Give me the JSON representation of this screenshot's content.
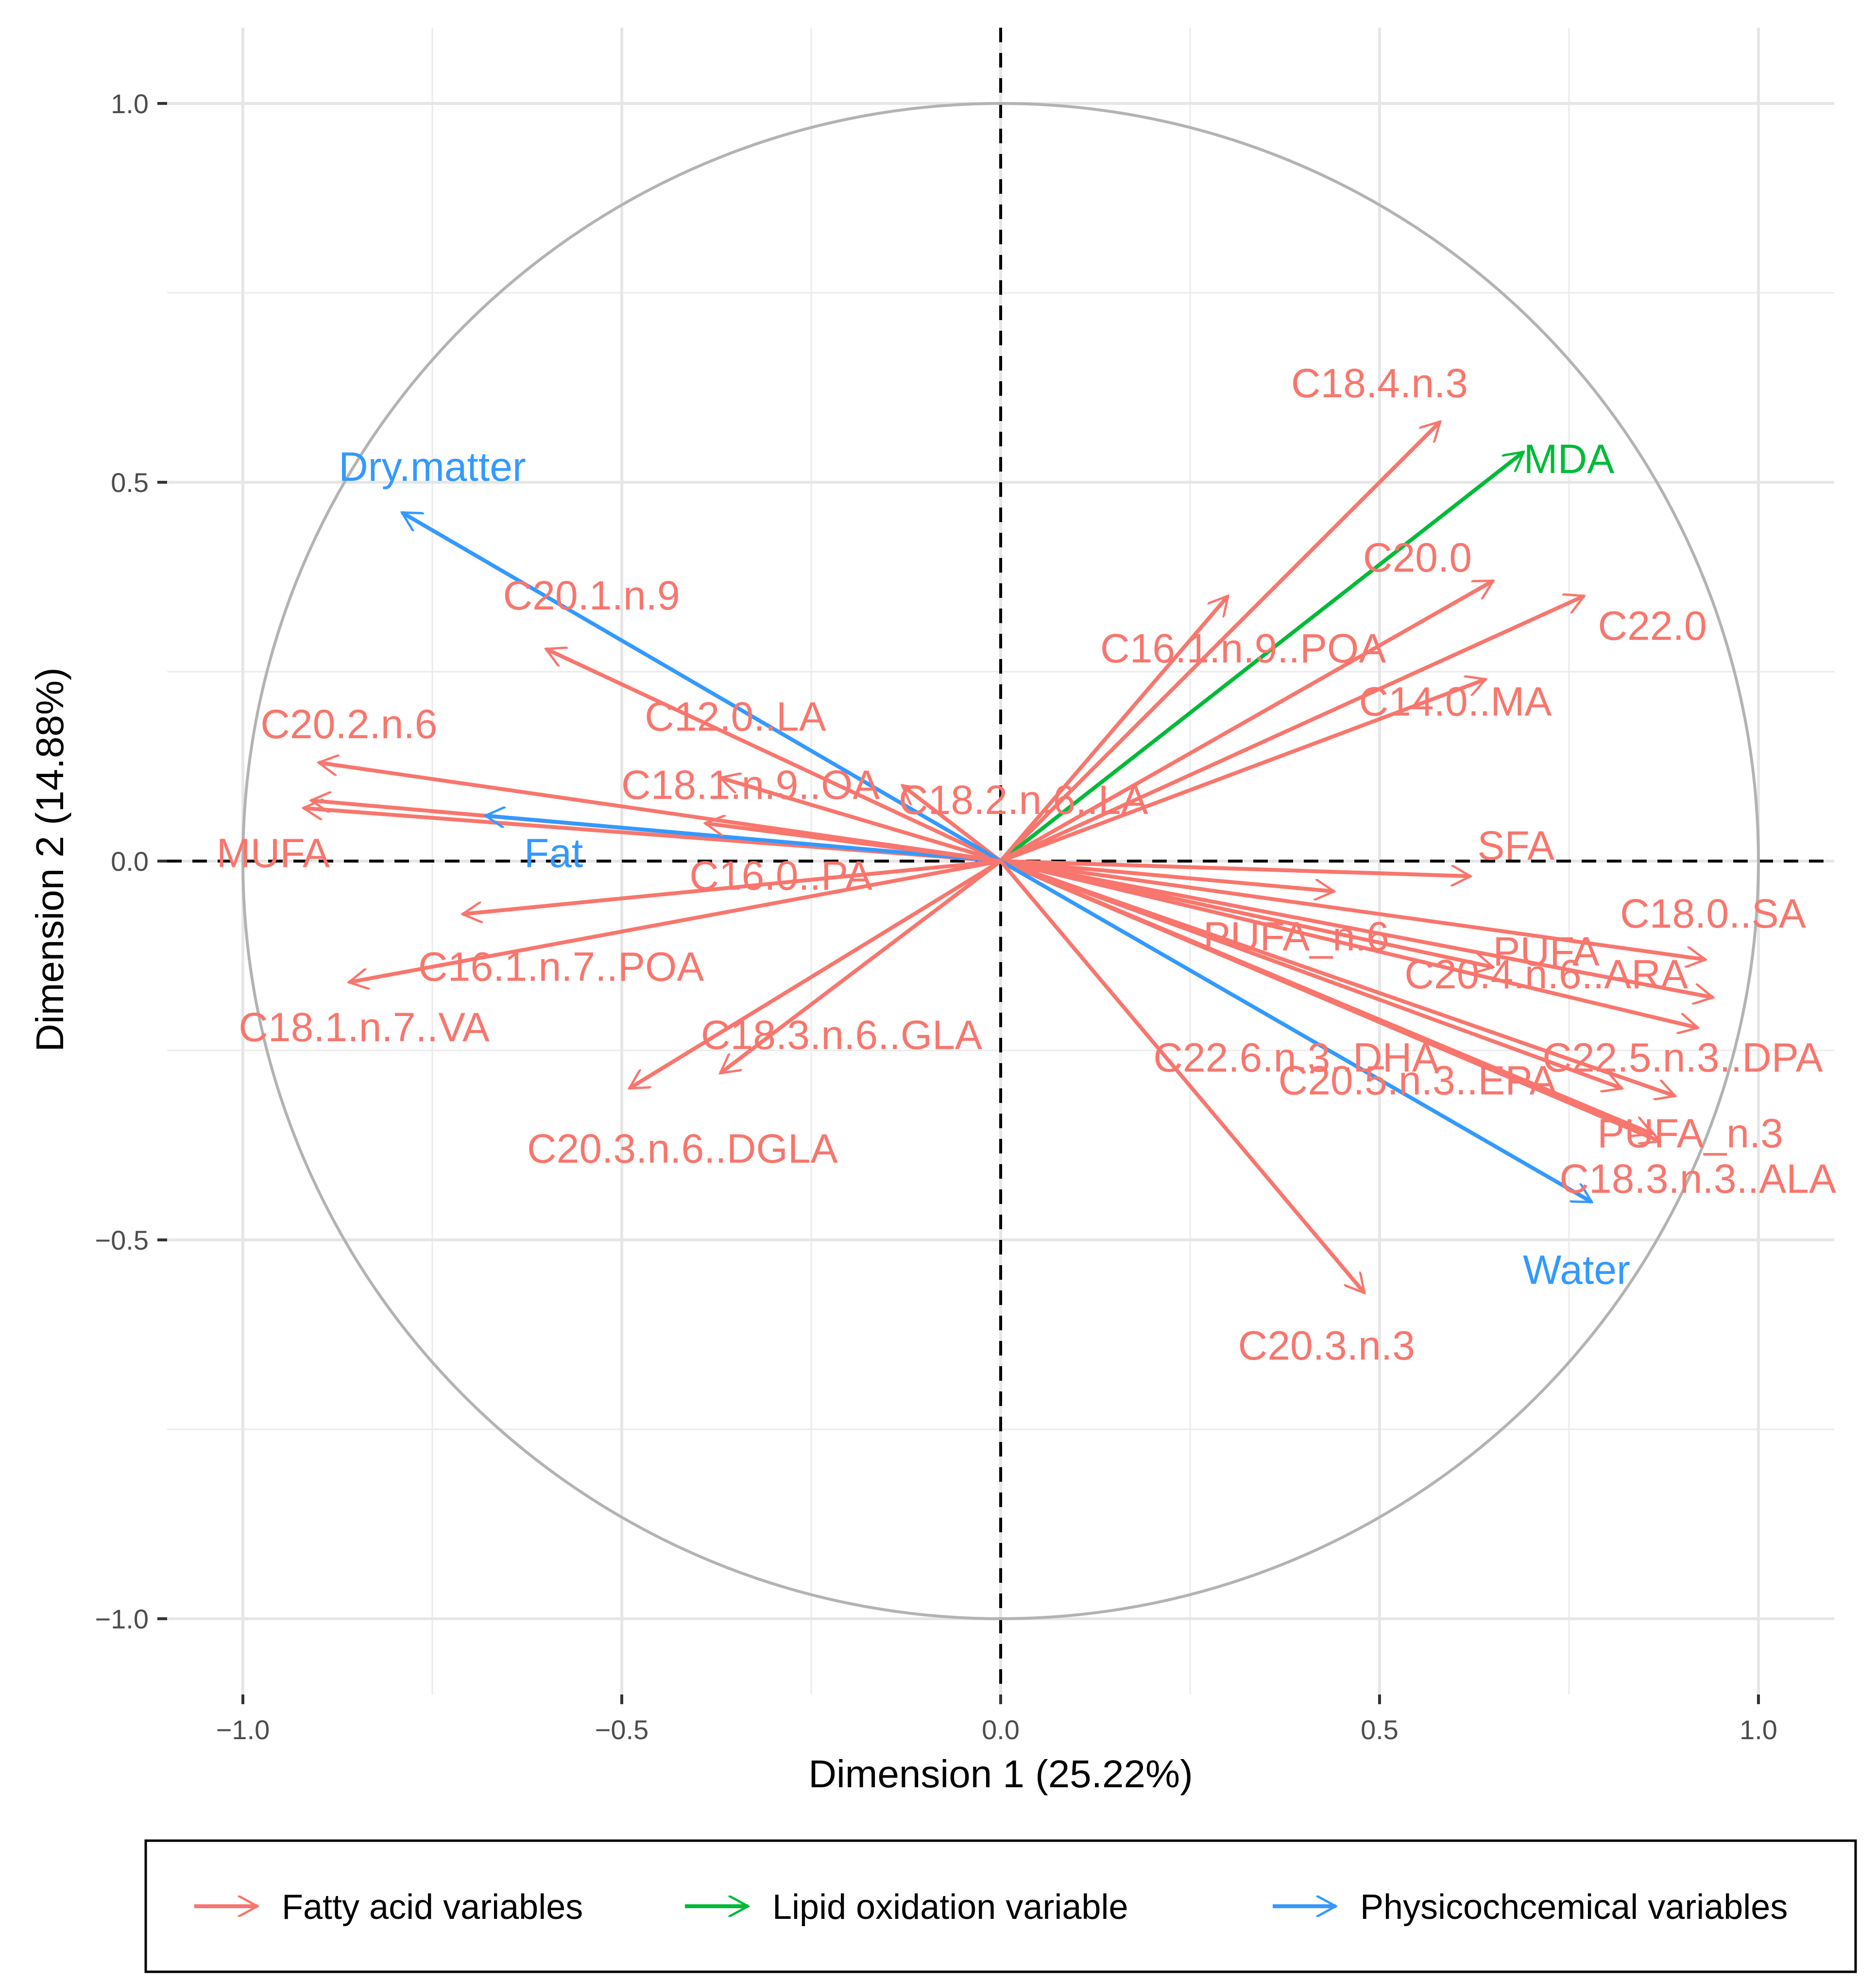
{
  "chart_data": {
    "type": "scatter",
    "subtype": "pca-variable-correlation-circle",
    "title": "",
    "xlabel": "Dimension 1 (25.22%)",
    "ylabel": "Dimension 2 (14.88%)",
    "xlim": [
      -1.1,
      1.1
    ],
    "ylim": [
      -1.1,
      1.1
    ],
    "x_ticks": [
      -1.0,
      -0.5,
      0.0,
      0.5,
      1.0
    ],
    "x_tick_labels": [
      "−1.0",
      "−0.5",
      "0.0",
      "0.5",
      "1.0"
    ],
    "y_ticks": [
      -1.0,
      -0.5,
      0.0,
      0.5,
      1.0
    ],
    "y_tick_labels": [
      "−1.0",
      "−0.5",
      "0.0",
      "0.5",
      "1.0"
    ],
    "grid": true,
    "unit_circle": true,
    "reference_lines": "dashed lines at x = 0 and y = 0",
    "legend_position": "bottom",
    "groups": [
      {
        "key": "fatty",
        "name": "Fatty acid variables",
        "color": "#F8766D"
      },
      {
        "key": "lipid",
        "name": "Lipid oxidation variable",
        "color": "#00BA38"
      },
      {
        "key": "physico",
        "name": "Physicochcemical variables",
        "color": "#3399FF"
      }
    ],
    "variables": [
      {
        "name": "C18.4.n.3",
        "group": "fatty",
        "x": 0.58,
        "y": 0.58
      },
      {
        "name": "MDA",
        "group": "lipid",
        "x": 0.69,
        "y": 0.54
      },
      {
        "name": "C20.0",
        "group": "fatty",
        "x": 0.65,
        "y": 0.37
      },
      {
        "name": "C22.0",
        "group": "fatty",
        "x": 0.77,
        "y": 0.35
      },
      {
        "name": "C16.1.n.9..POA",
        "group": "fatty",
        "x": 0.3,
        "y": 0.35
      },
      {
        "name": "C14.0..MA",
        "group": "fatty",
        "x": 0.64,
        "y": 0.24
      },
      {
        "name": "C18.2.n.6..LA",
        "group": "fatty",
        "x": -0.13,
        "y": 0.1
      },
      {
        "name": "C12.0..LA",
        "group": "fatty",
        "x": -0.37,
        "y": 0.11
      },
      {
        "name": "C20.1.n.9",
        "group": "fatty",
        "x": -0.6,
        "y": 0.28
      },
      {
        "name": "Dry.matter",
        "group": "physico",
        "x": -0.79,
        "y": 0.46
      },
      {
        "name": "C20.2.n.6",
        "group": "fatty",
        "x": -0.9,
        "y": 0.13
      },
      {
        "name": "C18.1.n.9..OA",
        "group": "fatty",
        "x": -0.91,
        "y": 0.08
      },
      {
        "name": "MUFA",
        "group": "fatty",
        "x": -0.92,
        "y": 0.07
      },
      {
        "name": "Fat",
        "group": "physico",
        "x": -0.68,
        "y": 0.06
      },
      {
        "name": "C16.0..PA",
        "group": "fatty",
        "x": -0.39,
        "y": 0.05
      },
      {
        "name": "C16.1.n.7..POA",
        "group": "fatty",
        "x": -0.71,
        "y": -0.07
      },
      {
        "name": "C18.1.n.7..VA",
        "group": "fatty",
        "x": -0.86,
        "y": -0.16
      },
      {
        "name": "C18.3.n.6..GLA",
        "group": "fatty",
        "x": -0.37,
        "y": -0.28
      },
      {
        "name": "C20.3.n.6..DGLA",
        "group": "fatty",
        "x": -0.49,
        "y": -0.3
      },
      {
        "name": "SFA",
        "group": "fatty",
        "x": 0.62,
        "y": -0.02
      },
      {
        "name": "PUFA_n.6",
        "group": "fatty",
        "x": 0.44,
        "y": -0.04
      },
      {
        "name": "PUFA",
        "group": "fatty",
        "x": 0.65,
        "y": -0.14
      },
      {
        "name": "C18.0..SA",
        "group": "fatty",
        "x": 0.93,
        "y": -0.13
      },
      {
        "name": "C20.4.n.6..ARA",
        "group": "fatty",
        "x": 0.94,
        "y": -0.18
      },
      {
        "name": "C22.5.n.3..DPA",
        "group": "fatty",
        "x": 0.92,
        "y": -0.22
      },
      {
        "name": "C22.6.n.3..DHA",
        "group": "fatty",
        "x": 0.82,
        "y": -0.3
      },
      {
        "name": "C20.5.n.3..EPA",
        "group": "fatty",
        "x": 0.89,
        "y": -0.31
      },
      {
        "name": "PUFA_n.3",
        "group": "fatty",
        "x": 0.87,
        "y": -0.37
      },
      {
        "name": "C18.3.n.3..ALA",
        "group": "fatty",
        "x": 0.86,
        "y": -0.36
      },
      {
        "name": "Water",
        "group": "physico",
        "x": 0.78,
        "y": -0.45
      },
      {
        "name": "C20.3.n.3",
        "group": "fatty",
        "x": 0.48,
        "y": -0.57
      }
    ]
  }
}
